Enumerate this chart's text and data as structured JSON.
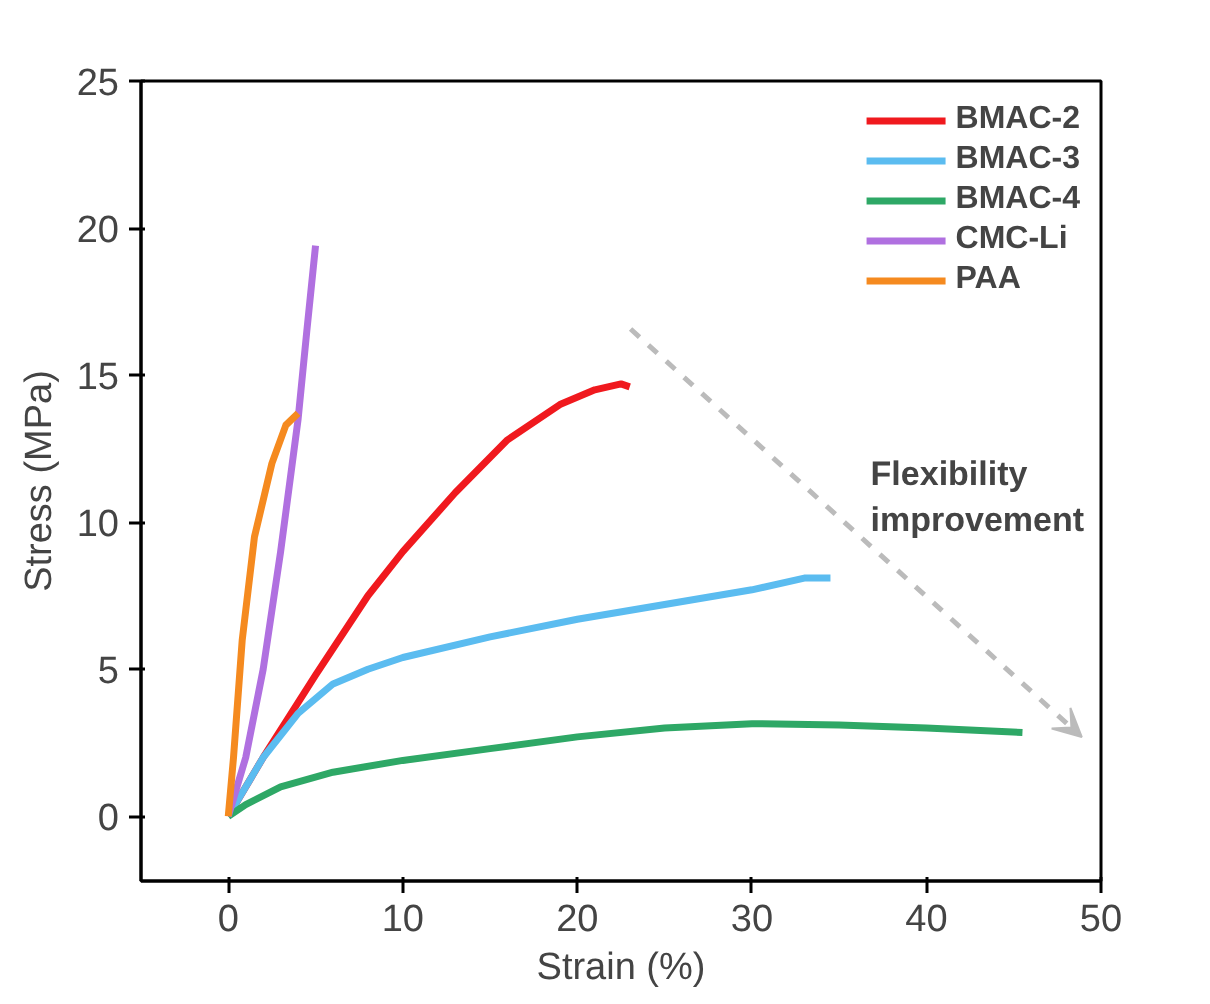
{
  "chart_data": {
    "type": "line",
    "xlabel": "Strain (%)",
    "ylabel": "Stress (MPa)",
    "xlim": [
      -5,
      50
    ],
    "ylim": [
      -2.2,
      25
    ],
    "xticks": [
      0,
      10,
      20,
      30,
      40,
      50
    ],
    "yticks": [
      0,
      5,
      10,
      15,
      20,
      25
    ],
    "grid": false,
    "legend": "top right",
    "marker": "none",
    "line_style": "solid",
    "annotations": [
      "Flexibility improvement"
    ],
    "series": [
      {
        "name": "BMAC-2",
        "color": "#f0191e",
        "x": [
          0,
          2,
          5,
          8,
          10,
          13,
          16,
          19,
          21,
          22.5,
          23
        ],
        "values": [
          0,
          2,
          4.8,
          7.5,
          9,
          11,
          12.8,
          14,
          14.5,
          14.7,
          14.6
        ]
      },
      {
        "name": "BMAC-3",
        "color": "#5bbcf0",
        "x": [
          0,
          2,
          4,
          6,
          8,
          10,
          15,
          20,
          25,
          30,
          33,
          34.5
        ],
        "values": [
          0,
          2,
          3.5,
          4.5,
          5,
          5.4,
          6.1,
          6.7,
          7.2,
          7.7,
          8.1,
          8.1
        ]
      },
      {
        "name": "BMAC-4",
        "color": "#2ea866",
        "x": [
          0,
          1,
          3,
          6,
          10,
          15,
          20,
          25,
          30,
          35,
          40,
          45.5
        ],
        "values": [
          0,
          0.4,
          1,
          1.5,
          1.9,
          2.3,
          2.7,
          3,
          3.15,
          3.1,
          3,
          2.85
        ]
      },
      {
        "name": "CMC-Li",
        "color": "#b070e0",
        "x": [
          0,
          1,
          2,
          3,
          4,
          4.5,
          5
        ],
        "values": [
          0,
          2,
          5,
          9,
          13.5,
          16.5,
          19.4
        ]
      },
      {
        "name": "PAA",
        "color": "#f58a1f",
        "x": [
          0,
          0.3,
          0.8,
          1.5,
          2.5,
          3.3,
          4
        ],
        "values": [
          0,
          2,
          6,
          9.5,
          12,
          13.3,
          13.7
        ]
      }
    ]
  }
}
